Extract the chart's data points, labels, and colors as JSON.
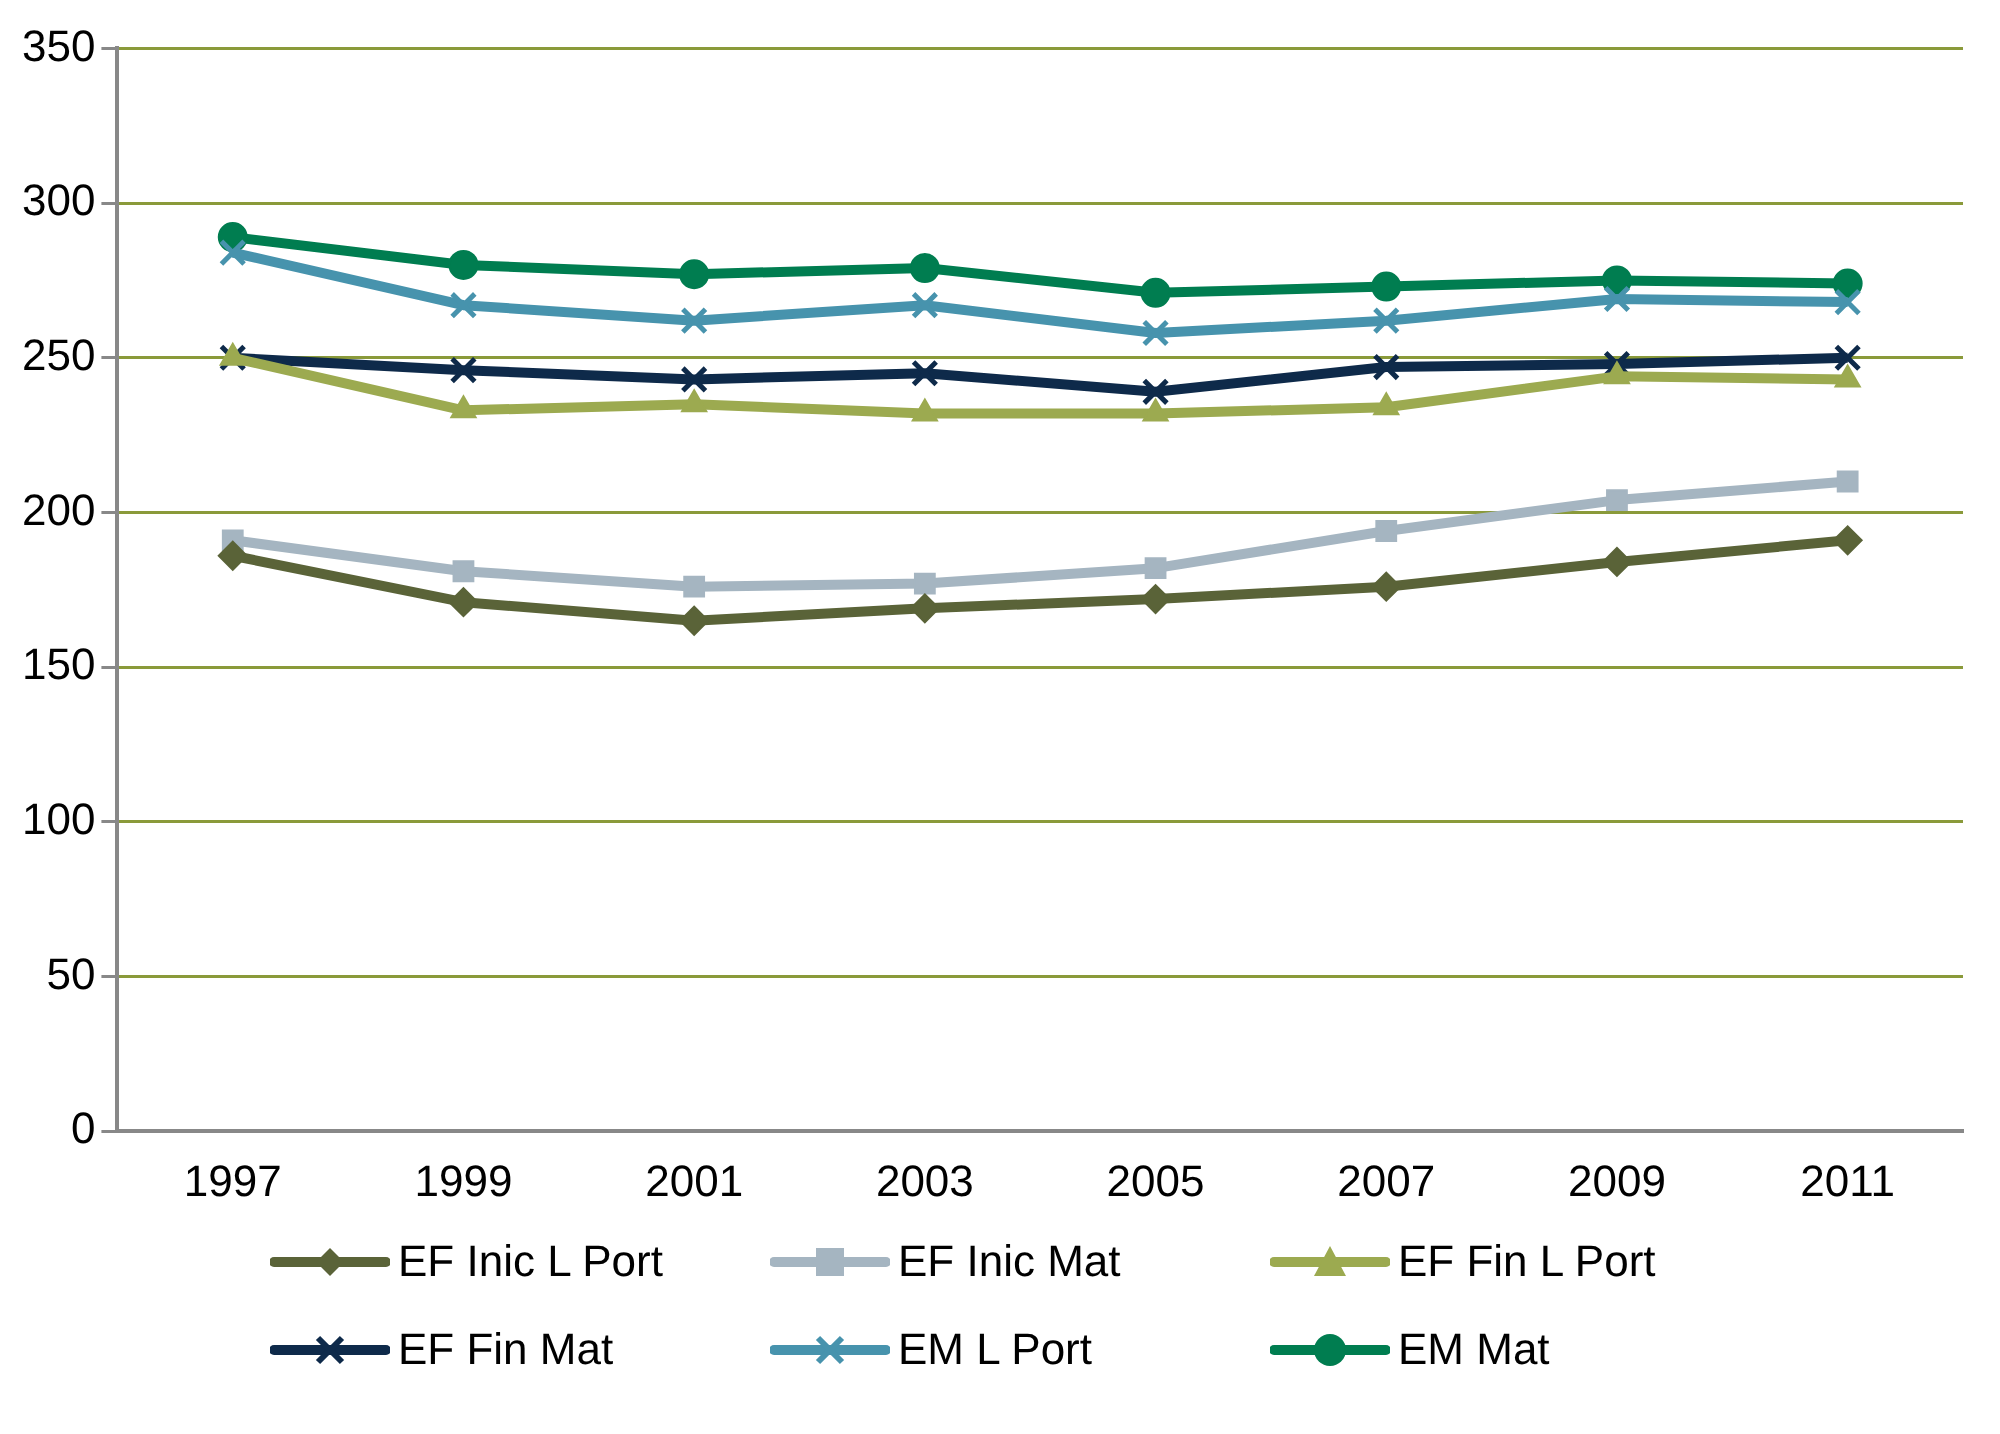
{
  "chart_data": {
    "type": "line",
    "categories": [
      "1997",
      "1999",
      "2001",
      "2003",
      "2005",
      "2007",
      "2009",
      "2011"
    ],
    "ylim": [
      0,
      350
    ],
    "yticks": [
      0,
      50,
      100,
      150,
      200,
      250,
      300,
      350
    ],
    "grid": "y",
    "legend": "bottom",
    "line_style": "solid",
    "series": [
      {
        "name": "EF Inic L Port",
        "color": "#5a6338",
        "marker": "diamond",
        "values": [
          186,
          171,
          165,
          169,
          172,
          176,
          184,
          191
        ]
      },
      {
        "name": "EF Inic Mat",
        "color": "#a5b5c1",
        "marker": "square",
        "values": [
          191,
          181,
          176,
          177,
          182,
          194,
          204,
          210
        ]
      },
      {
        "name": "EF Fin L Port",
        "color": "#9caa50",
        "marker": "triangle",
        "values": [
          250,
          233,
          235,
          232,
          232,
          234,
          244,
          243
        ]
      },
      {
        "name": "EF Fin Mat",
        "color": "#0e2a4a",
        "marker": "cross",
        "values": [
          250,
          246,
          243,
          245,
          239,
          247,
          248,
          250
        ]
      },
      {
        "name": "EM L Port",
        "color": "#4793ad",
        "marker": "cross",
        "values": [
          284,
          267,
          262,
          267,
          258,
          262,
          269,
          268
        ]
      },
      {
        "name": "EM Mat",
        "color": "#007d50",
        "marker": "circle",
        "values": [
          289,
          280,
          277,
          279,
          271,
          273,
          275,
          274
        ]
      }
    ]
  }
}
